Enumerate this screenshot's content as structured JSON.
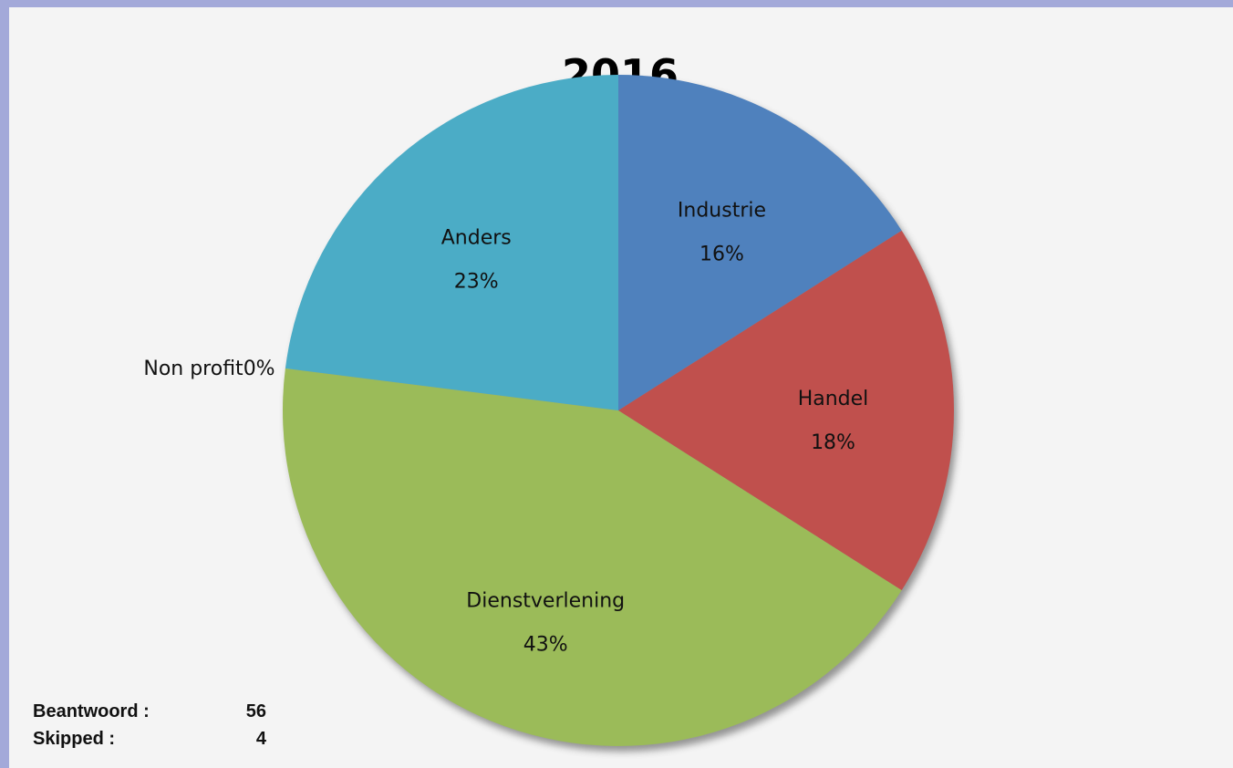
{
  "chart_data": {
    "type": "pie",
    "title": "2016",
    "categories": [
      "Industrie",
      "Handel",
      "Dienstverlening",
      "Non profit",
      "Anders"
    ],
    "values": [
      16,
      18,
      43,
      0,
      23
    ],
    "value_labels": [
      "16%",
      "18%",
      "43%",
      "0%",
      "23%"
    ],
    "colors": [
      "#4f81bd",
      "#c0504d",
      "#9bbb59",
      "#8064a2",
      "#4bacc6"
    ]
  },
  "footer": {
    "answered": {
      "label": "Beantwoord :",
      "value": 56
    },
    "skipped": {
      "label": "Skipped :",
      "value": 4
    }
  }
}
